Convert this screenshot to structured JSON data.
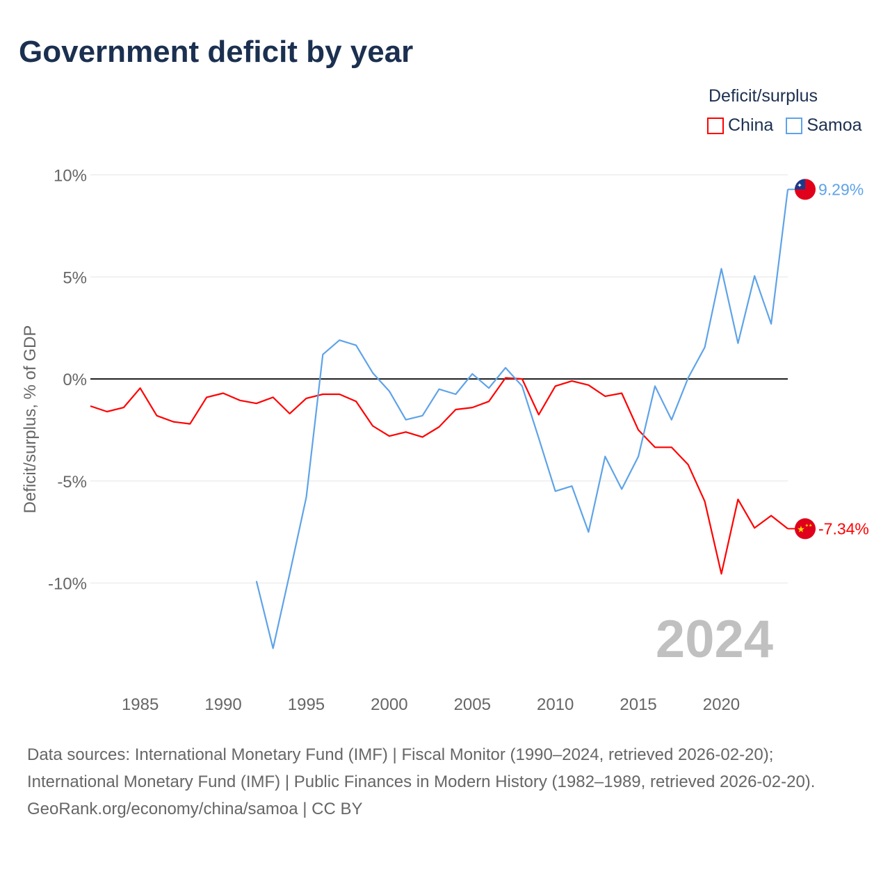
{
  "title": "Government deficit by year",
  "legend": {
    "title": "Deficit/surplus",
    "items": [
      {
        "name": "China",
        "color": "#ff0000"
      },
      {
        "name": "Samoa",
        "color": "#5ea3e8"
      }
    ]
  },
  "year_watermark": "2024",
  "footer": {
    "sources": "Data sources: International Monetary Fund (IMF) | Fiscal Monitor (1990–2024, retrieved 2026-02-20); International Monetary Fund (IMF) | Public Finances in Modern History (1982–1989, retrieved 2026-02-20).",
    "credit": "GeoRank.org/economy/china/samoa | CC BY"
  },
  "chart_data": {
    "type": "line",
    "title": "Government deficit by year",
    "xlabel": "",
    "ylabel": "Deficit/surplus, % of GDP",
    "xlim": [
      1982,
      2024
    ],
    "ylim": [
      -15,
      10.5
    ],
    "x_ticks": [
      1985,
      1990,
      1995,
      2000,
      2005,
      2010,
      2015,
      2020
    ],
    "y_ticks": [
      {
        "v": 10,
        "label": "10%"
      },
      {
        "v": 5,
        "label": "5%"
      },
      {
        "v": 0,
        "label": "0%"
      },
      {
        "v": -5,
        "label": "-5%"
      },
      {
        "v": -10,
        "label": "-10%"
      }
    ],
    "legend_position": "top-right",
    "series": [
      {
        "name": "China",
        "color": "#ff0000",
        "end_label": "-7.34%",
        "x": [
          1982,
          1983,
          1984,
          1985,
          1986,
          1987,
          1988,
          1989,
          1990,
          1991,
          1992,
          1993,
          1994,
          1995,
          1996,
          1997,
          1998,
          1999,
          2000,
          2001,
          2002,
          2003,
          2004,
          2005,
          2006,
          2007,
          2008,
          2009,
          2010,
          2011,
          2012,
          2013,
          2014,
          2015,
          2016,
          2017,
          2018,
          2019,
          2020,
          2021,
          2022,
          2023,
          2024
        ],
        "values": [
          -1.33,
          -1.6,
          -1.4,
          -0.45,
          -1.8,
          -2.1,
          -2.2,
          -0.9,
          -0.7,
          -1.05,
          -1.2,
          -0.9,
          -1.7,
          -0.95,
          -0.75,
          -0.75,
          -1.1,
          -2.3,
          -2.8,
          -2.6,
          -2.85,
          -2.35,
          -1.5,
          -1.4,
          -1.1,
          0.05,
          0,
          -1.75,
          -0.35,
          -0.1,
          -0.3,
          -0.85,
          -0.7,
          -2.5,
          -3.35,
          -3.35,
          -4.2,
          -6.0,
          -9.55,
          -5.9,
          -7.3,
          -6.7,
          -7.34
        ]
      },
      {
        "name": "Samoa",
        "color": "#5ea3e8",
        "end_label": "9.29%",
        "x": [
          1992,
          1993,
          1994,
          1995,
          1996,
          1997,
          1998,
          1999,
          2000,
          2001,
          2002,
          2003,
          2004,
          2005,
          2006,
          2007,
          2008,
          2009,
          2010,
          2011,
          2012,
          2013,
          2014,
          2015,
          2016,
          2017,
          2018,
          2019,
          2020,
          2021,
          2022,
          2023,
          2024
        ],
        "values": [
          -9.9,
          -13.2,
          -9.55,
          -5.8,
          1.2,
          1.9,
          1.65,
          0.3,
          -0.6,
          -2.0,
          -1.8,
          -0.5,
          -0.75,
          0.25,
          -0.45,
          0.55,
          -0.35,
          -2.9,
          -5.5,
          -5.25,
          -7.5,
          -3.8,
          -5.4,
          -3.8,
          -0.35,
          -2.0,
          0.05,
          1.55,
          5.4,
          1.75,
          5.05,
          2.7,
          9.29
        ]
      }
    ]
  }
}
